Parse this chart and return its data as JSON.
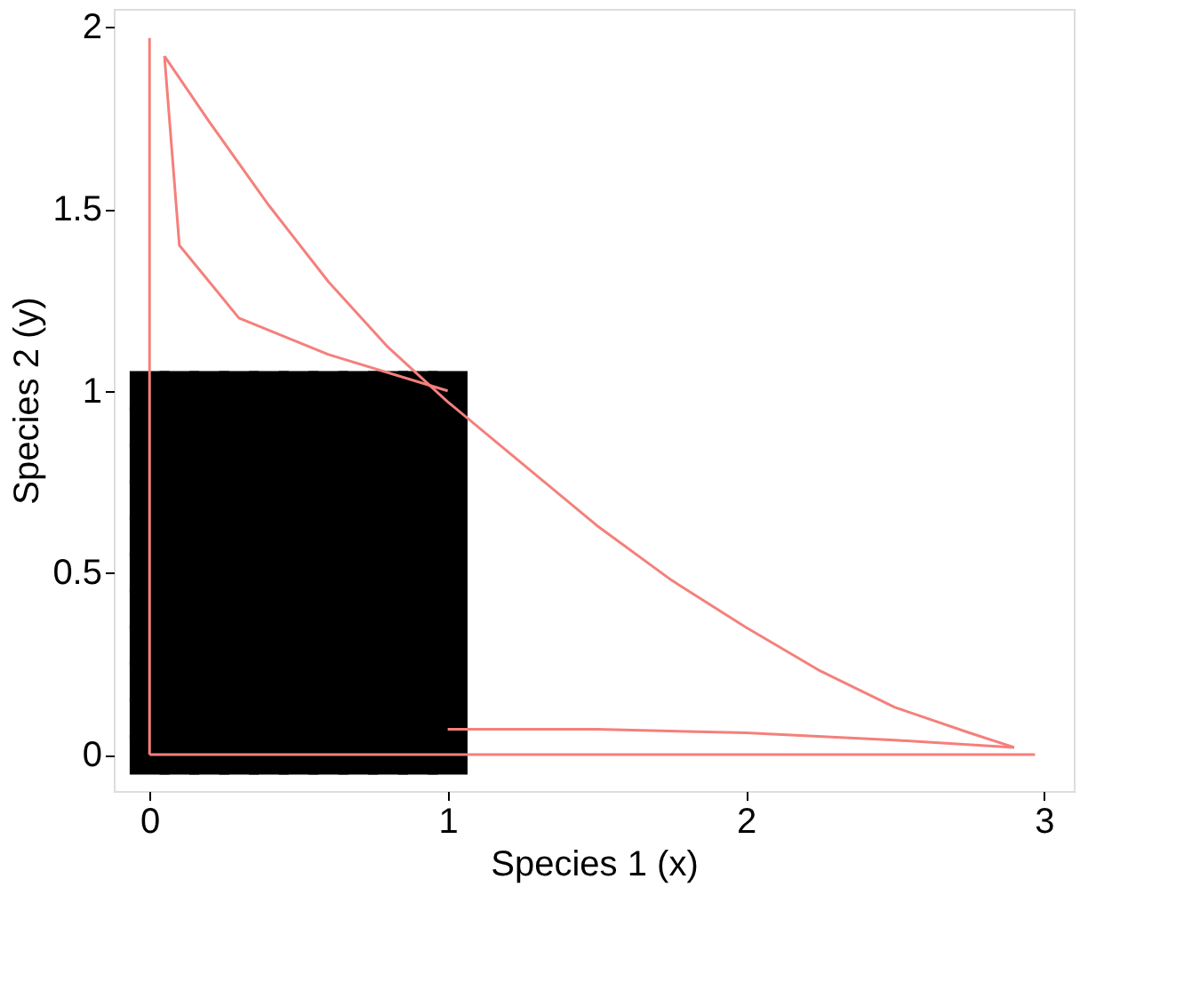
{
  "chart_data": {
    "type": "line",
    "xlabel": "Species 1 (x)",
    "ylabel": "Species 2 (y)",
    "xlim": [
      -0.12,
      3.1
    ],
    "ylim": [
      -0.1,
      2.05
    ],
    "xticks": [
      0,
      1,
      2,
      3
    ],
    "yticks": [
      0,
      0.5,
      1,
      1.5,
      2
    ],
    "series": [
      {
        "color": "#f4807c",
        "x": [
          0.05,
          0.2,
          0.4,
          0.6,
          0.8,
          1.0,
          1.25,
          1.5,
          1.75,
          2.0,
          2.25,
          2.5,
          2.75,
          2.9
        ],
        "values": [
          1.92,
          1.74,
          1.51,
          1.3,
          1.12,
          0.97,
          0.8,
          0.63,
          0.48,
          0.35,
          0.23,
          0.13,
          0.06,
          0.02
        ]
      },
      {
        "color": "#f4807c",
        "x": [
          1.0,
          1.5,
          2.0,
          2.5,
          2.9
        ],
        "values": [
          0.07,
          0.07,
          0.06,
          0.04,
          0.02
        ]
      },
      {
        "color": "#f4807c",
        "x": [
          0.05,
          0.1,
          0.3,
          0.6,
          1.0
        ],
        "values": [
          1.92,
          1.4,
          1.2,
          1.1,
          1.0
        ]
      },
      {
        "color": "#f4807c",
        "x": [
          0,
          0
        ],
        "values": [
          0,
          1.97
        ]
      },
      {
        "color": "#f4807c",
        "x": [
          0,
          2.97
        ],
        "values": [
          0,
          0
        ]
      },
      {
        "type": "scatter",
        "color": "#000000",
        "x": [
          0,
          0.1,
          0.2,
          0.3,
          0.4,
          0.5,
          0.6,
          0.7,
          0.8,
          0.9,
          1.0,
          0,
          0.1,
          0.2,
          0.3,
          0.4,
          0.5,
          0.6,
          0.7,
          0.8,
          0.9,
          1.0,
          0,
          0.1,
          0.2,
          0.3,
          0.4,
          0.5,
          0.6,
          0.7,
          0.8,
          0.9,
          1.0,
          0,
          0.1,
          0.2,
          0.3,
          0.4,
          0.5,
          0.6,
          0.7,
          0.8,
          0.9,
          1.0,
          0,
          0.1,
          0.2,
          0.3,
          0.4,
          0.5,
          0.6,
          0.7,
          0.8,
          0.9,
          1.0,
          0,
          0.1,
          0.2,
          0.3,
          0.4,
          0.5,
          0.6,
          0.7,
          0.8,
          0.9,
          1.0,
          0,
          0.1,
          0.2,
          0.3,
          0.4,
          0.5,
          0.6,
          0.7,
          0.8,
          0.9,
          1.0,
          0,
          0.1,
          0.2,
          0.3,
          0.4,
          0.5,
          0.6,
          0.7,
          0.8,
          0.9,
          1.0,
          0,
          0.1,
          0.2,
          0.3,
          0.4,
          0.5,
          0.6,
          0.7,
          0.8,
          0.9,
          1.0,
          0,
          0.1,
          0.2,
          0.3,
          0.4,
          0.5,
          0.6,
          0.7,
          0.8,
          0.9,
          1.0,
          0,
          0.1,
          0.2,
          0.3,
          0.4,
          0.5,
          0.6,
          0.7,
          0.8,
          0.9,
          1.0
        ],
        "values": [
          0,
          0,
          0,
          0,
          0,
          0,
          0,
          0,
          0,
          0,
          0,
          0.1,
          0.1,
          0.1,
          0.1,
          0.1,
          0.1,
          0.1,
          0.1,
          0.1,
          0.1,
          0.1,
          0.2,
          0.2,
          0.2,
          0.2,
          0.2,
          0.2,
          0.2,
          0.2,
          0.2,
          0.2,
          0.2,
          0.3,
          0.3,
          0.3,
          0.3,
          0.3,
          0.3,
          0.3,
          0.3,
          0.3,
          0.3,
          0.3,
          0.4,
          0.4,
          0.4,
          0.4,
          0.4,
          0.4,
          0.4,
          0.4,
          0.4,
          0.4,
          0.4,
          0.5,
          0.5,
          0.5,
          0.5,
          0.5,
          0.5,
          0.5,
          0.5,
          0.5,
          0.5,
          0.5,
          0.6,
          0.6,
          0.6,
          0.6,
          0.6,
          0.6,
          0.6,
          0.6,
          0.6,
          0.6,
          0.6,
          0.7,
          0.7,
          0.7,
          0.7,
          0.7,
          0.7,
          0.7,
          0.7,
          0.7,
          0.7,
          0.7,
          0.8,
          0.8,
          0.8,
          0.8,
          0.8,
          0.8,
          0.8,
          0.8,
          0.8,
          0.8,
          0.8,
          0.9,
          0.9,
          0.9,
          0.9,
          0.9,
          0.9,
          0.9,
          0.9,
          0.9,
          0.9,
          0.9,
          1.0,
          1.0,
          1.0,
          1.0,
          1.0,
          1.0,
          1.0,
          1.0,
          1.0,
          1.0,
          1.0
        ],
        "marker": "square"
      }
    ]
  }
}
